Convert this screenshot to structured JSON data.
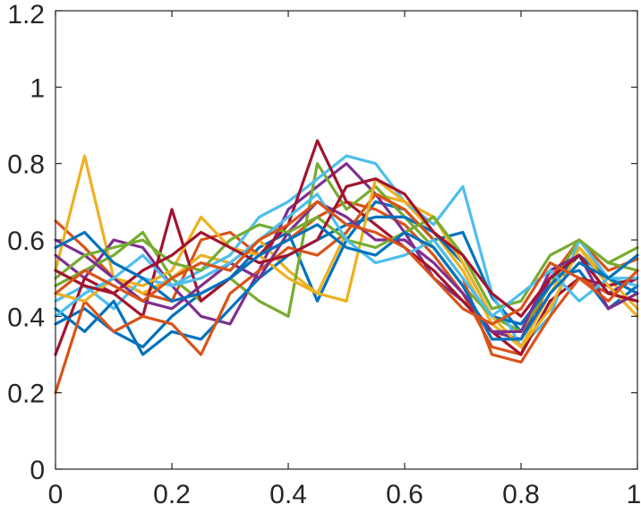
{
  "chart_data": {
    "type": "line",
    "title": "",
    "xlabel": "",
    "ylabel": "",
    "xlim": [
      0,
      1
    ],
    "ylim": [
      0,
      1.2
    ],
    "grid": false,
    "x_ticks": [
      0,
      0.2,
      0.4,
      0.6,
      0.8,
      1
    ],
    "x_tick_labels": [
      "0",
      "0.2",
      "0.4",
      "0.6",
      "0.8",
      "1"
    ],
    "y_ticks": [
      0,
      0.2,
      0.4,
      0.6,
      0.8,
      1,
      1.2
    ],
    "y_tick_labels": [
      "0",
      "0.2",
      "0.4",
      "0.6",
      "0.8",
      "1",
      "1.2"
    ],
    "colors": [
      "#0072BD",
      "#D95319",
      "#EDB120",
      "#7E2F8E",
      "#77AC30",
      "#4DBEEE",
      "#A2142F"
    ],
    "x": [
      0,
      0.05,
      0.1,
      0.15,
      0.2,
      0.25,
      0.3,
      0.35,
      0.4,
      0.45,
      0.5,
      0.55,
      0.6,
      0.65,
      0.7,
      0.75,
      0.8,
      0.85,
      0.9,
      0.95,
      1
    ],
    "series": [
      {
        "values": [
          0.38,
          0.42,
          0.36,
          0.32,
          0.4,
          0.46,
          0.5,
          0.58,
          0.62,
          0.44,
          0.6,
          0.7,
          0.68,
          0.6,
          0.62,
          0.45,
          0.36,
          0.5,
          0.52,
          0.42,
          0.48
        ]
      },
      {
        "values": [
          0.65,
          0.58,
          0.5,
          0.46,
          0.44,
          0.6,
          0.62,
          0.56,
          0.6,
          0.66,
          0.7,
          0.68,
          0.64,
          0.56,
          0.46,
          0.32,
          0.3,
          0.5,
          0.6,
          0.52,
          0.55
        ]
      },
      {
        "values": [
          0.52,
          0.82,
          0.5,
          0.46,
          0.5,
          0.56,
          0.54,
          0.6,
          0.52,
          0.46,
          0.62,
          0.72,
          0.7,
          0.62,
          0.52,
          0.38,
          0.32,
          0.46,
          0.58,
          0.5,
          0.42
        ]
      },
      {
        "values": [
          0.56,
          0.5,
          0.6,
          0.58,
          0.48,
          0.4,
          0.38,
          0.52,
          0.68,
          0.74,
          0.8,
          0.72,
          0.62,
          0.5,
          0.44,
          0.36,
          0.34,
          0.5,
          0.56,
          0.46,
          0.5
        ]
      },
      {
        "values": [
          0.48,
          0.52,
          0.56,
          0.62,
          0.5,
          0.44,
          0.5,
          0.44,
          0.4,
          0.8,
          0.68,
          0.74,
          0.66,
          0.58,
          0.48,
          0.4,
          0.36,
          0.48,
          0.6,
          0.54,
          0.58
        ]
      },
      {
        "values": [
          0.44,
          0.48,
          0.42,
          0.5,
          0.48,
          0.52,
          0.56,
          0.66,
          0.7,
          0.76,
          0.82,
          0.8,
          0.7,
          0.64,
          0.74,
          0.46,
          0.32,
          0.4,
          0.6,
          0.5,
          0.48
        ]
      },
      {
        "values": [
          0.3,
          0.5,
          0.46,
          0.4,
          0.68,
          0.44,
          0.5,
          0.56,
          0.64,
          0.86,
          0.7,
          0.64,
          0.58,
          0.52,
          0.44,
          0.36,
          0.3,
          0.44,
          0.5,
          0.48,
          0.5
        ]
      },
      {
        "values": [
          0.42,
          0.36,
          0.44,
          0.3,
          0.36,
          0.34,
          0.42,
          0.5,
          0.56,
          0.6,
          0.64,
          0.66,
          0.66,
          0.62,
          0.54,
          0.4,
          0.38,
          0.48,
          0.56,
          0.5,
          0.46
        ]
      },
      {
        "values": [
          0.2,
          0.44,
          0.36,
          0.4,
          0.38,
          0.3,
          0.46,
          0.52,
          0.58,
          0.56,
          0.62,
          0.72,
          0.68,
          0.6,
          0.5,
          0.3,
          0.28,
          0.4,
          0.5,
          0.46,
          0.44
        ]
      },
      {
        "values": [
          0.46,
          0.44,
          0.5,
          0.48,
          0.52,
          0.66,
          0.58,
          0.56,
          0.5,
          0.46,
          0.44,
          0.76,
          0.7,
          0.66,
          0.54,
          0.4,
          0.32,
          0.42,
          0.58,
          0.48,
          0.4
        ]
      },
      {
        "values": [
          0.6,
          0.56,
          0.5,
          0.44,
          0.42,
          0.48,
          0.54,
          0.5,
          0.62,
          0.7,
          0.66,
          0.6,
          0.6,
          0.54,
          0.46,
          0.36,
          0.36,
          0.52,
          0.56,
          0.42,
          0.46
        ]
      },
      {
        "values": [
          0.5,
          0.56,
          0.58,
          0.6,
          0.54,
          0.52,
          0.6,
          0.64,
          0.62,
          0.66,
          0.6,
          0.58,
          0.62,
          0.66,
          0.56,
          0.42,
          0.44,
          0.56,
          0.6,
          0.54,
          0.52
        ]
      },
      {
        "values": [
          0.4,
          0.46,
          0.5,
          0.56,
          0.48,
          0.5,
          0.54,
          0.6,
          0.66,
          0.72,
          0.6,
          0.54,
          0.56,
          0.6,
          0.5,
          0.4,
          0.46,
          0.52,
          0.44,
          0.5,
          0.5
        ]
      },
      {
        "values": [
          0.52,
          0.48,
          0.46,
          0.52,
          0.56,
          0.62,
          0.58,
          0.54,
          0.56,
          0.6,
          0.74,
          0.76,
          0.72,
          0.62,
          0.56,
          0.46,
          0.4,
          0.5,
          0.56,
          0.46,
          0.44
        ]
      },
      {
        "values": [
          0.58,
          0.62,
          0.54,
          0.5,
          0.44,
          0.46,
          0.5,
          0.56,
          0.6,
          0.64,
          0.58,
          0.56,
          0.62,
          0.58,
          0.48,
          0.34,
          0.34,
          0.46,
          0.54,
          0.5,
          0.56
        ]
      },
      {
        "values": [
          0.46,
          0.52,
          0.48,
          0.44,
          0.5,
          0.54,
          0.52,
          0.6,
          0.64,
          0.7,
          0.64,
          0.62,
          0.58,
          0.5,
          0.42,
          0.38,
          0.42,
          0.54,
          0.5,
          0.44,
          0.52
        ]
      }
    ]
  }
}
